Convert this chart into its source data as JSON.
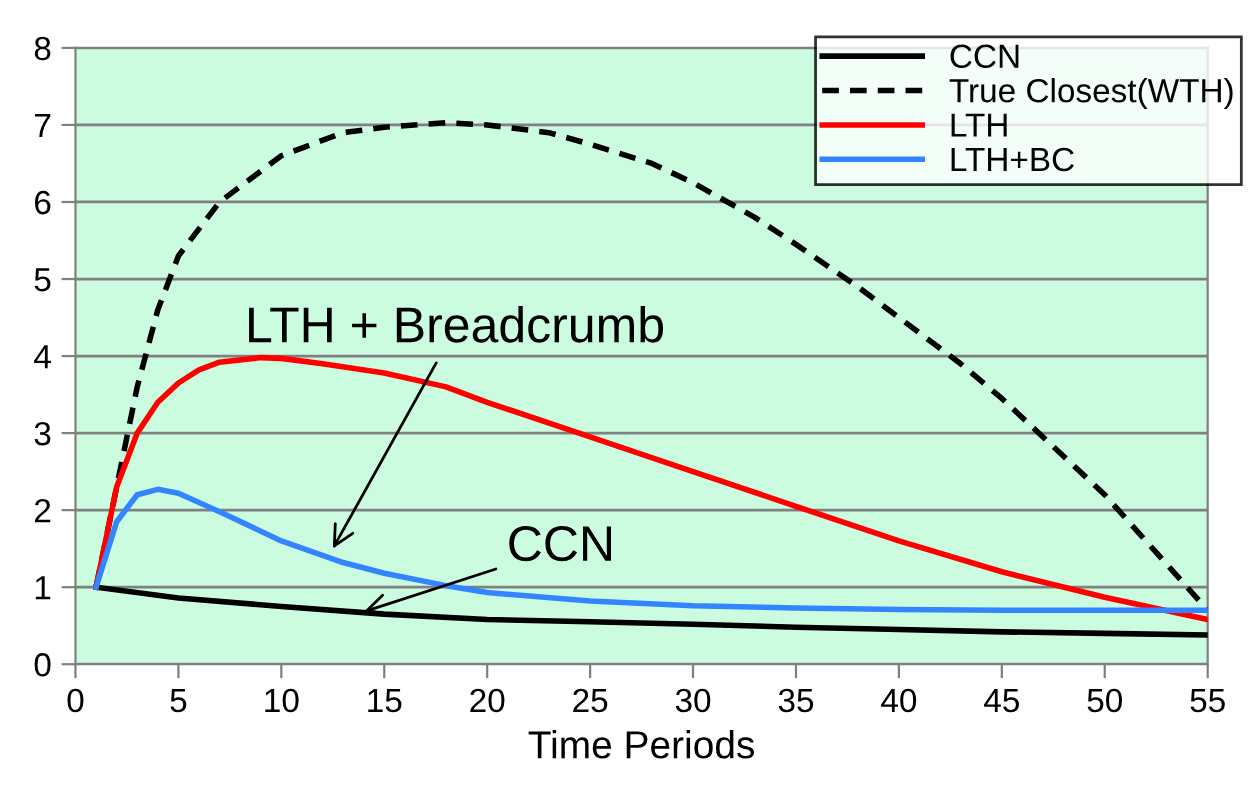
{
  "chart_data": {
    "type": "line",
    "xlabel": "Time Periods",
    "xlim": [
      0,
      55
    ],
    "xticks": [
      0,
      5,
      10,
      15,
      20,
      25,
      30,
      35,
      40,
      45,
      50,
      55
    ],
    "ylim": [
      0,
      8
    ],
    "yticks": [
      0,
      1,
      2,
      3,
      4,
      5,
      6,
      7,
      8
    ],
    "grid": "y",
    "legend": "top right",
    "marker": "none",
    "series": [
      {
        "name": "CCN",
        "color": "#000000",
        "line_style": "solid",
        "x": [
          1,
          5,
          10,
          15,
          20,
          25,
          30,
          35,
          40,
          45,
          50,
          55
        ],
        "values": [
          1,
          0.86,
          0.75,
          0.65,
          0.58,
          0.55,
          0.52,
          0.48,
          0.45,
          0.42,
          0.4,
          0.38
        ]
      },
      {
        "name": "True Closest(WTH)",
        "color": "#000000",
        "line_style": "dashed",
        "x": [
          1,
          2,
          3,
          4,
          5,
          7,
          10,
          13,
          15,
          18,
          20,
          23,
          25,
          28,
          30,
          33,
          35,
          38,
          40,
          43,
          45,
          48,
          50,
          53,
          55
        ],
        "values": [
          1,
          2.3,
          3.6,
          4.6,
          5.3,
          6.0,
          6.6,
          6.9,
          6.97,
          7.03,
          7.0,
          6.9,
          6.75,
          6.5,
          6.25,
          5.8,
          5.45,
          4.9,
          4.5,
          3.9,
          3.45,
          2.7,
          2.2,
          1.3,
          0.7
        ]
      },
      {
        "name": "LTH",
        "color": "#ff0000",
        "line_style": "solid",
        "x": [
          1,
          2,
          3,
          4,
          5,
          6,
          7,
          9,
          10,
          12,
          15,
          18,
          20,
          25,
          30,
          35,
          40,
          45,
          50,
          55
        ],
        "values": [
          1,
          2.3,
          3.0,
          3.4,
          3.65,
          3.82,
          3.92,
          3.98,
          3.97,
          3.9,
          3.78,
          3.6,
          3.4,
          2.95,
          2.5,
          2.05,
          1.6,
          1.2,
          0.87,
          0.58
        ]
      },
      {
        "name": "LTH+BC",
        "color": "#3385ff",
        "line_style": "solid",
        "x": [
          1,
          2,
          3,
          4,
          5,
          7,
          10,
          13,
          15,
          18,
          20,
          25,
          30,
          35,
          40,
          45,
          55
        ],
        "values": [
          1,
          1.85,
          2.2,
          2.27,
          2.22,
          1.98,
          1.6,
          1.32,
          1.18,
          1.02,
          0.93,
          0.82,
          0.76,
          0.73,
          0.71,
          0.7,
          0.7
        ]
      }
    ],
    "annotations": [
      {
        "text": "LTH + Breadcrumb",
        "x": 12.5,
        "y": 1.5
      },
      {
        "text": "CCN",
        "x": 14,
        "y": 0.68
      }
    ]
  }
}
